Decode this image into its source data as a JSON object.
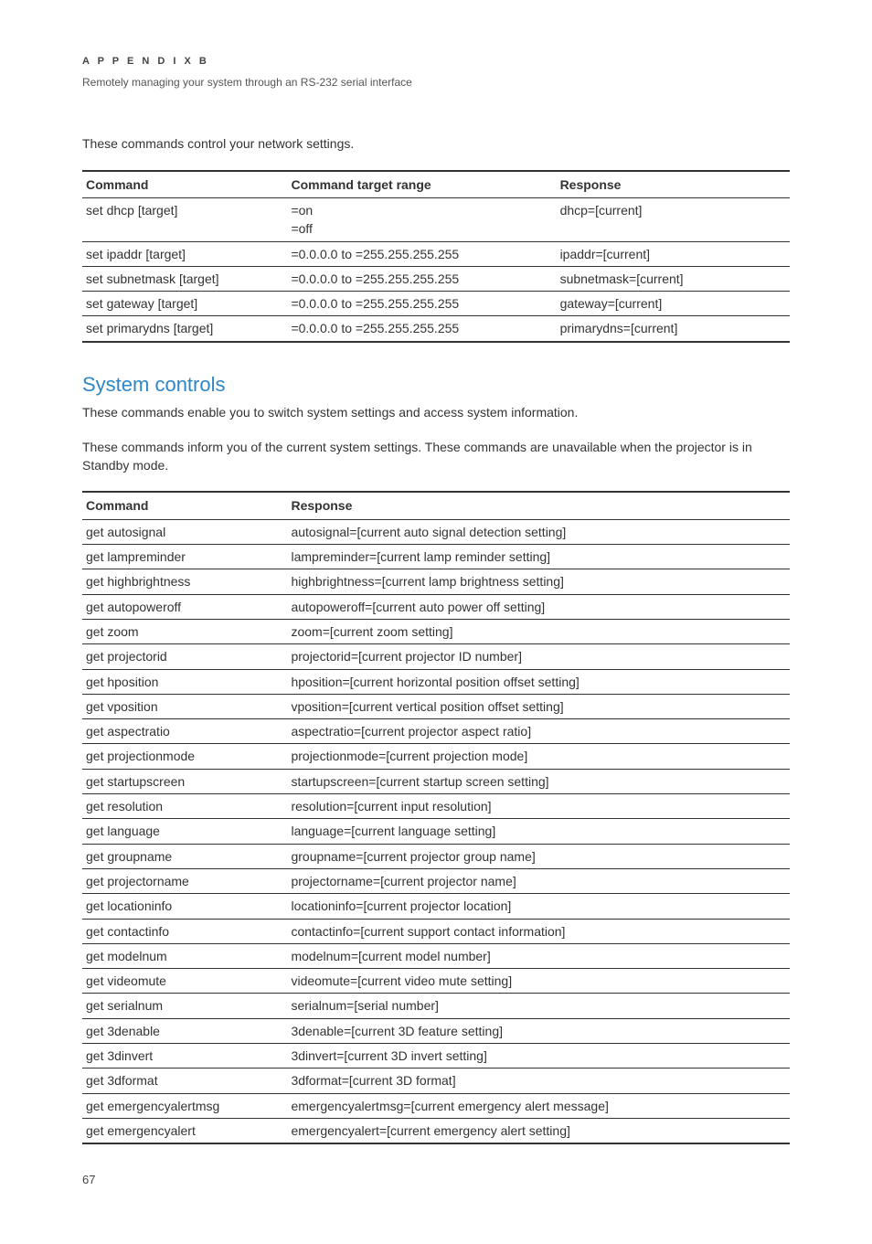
{
  "header": {
    "appendix": "A P P E N D I X   B",
    "subtitle": "Remotely managing your system through an RS-232 serial interface"
  },
  "intro1": "These commands control your network settings.",
  "table1": {
    "columns": [
      "Command",
      "Command target range",
      "Response"
    ],
    "rows": [
      [
        "set dhcp [target]",
        "=on\n=off",
        "dhcp=[current]"
      ],
      [
        "set ipaddr [target]",
        "=0.0.0.0 to =255.255.255.255",
        "ipaddr=[current]"
      ],
      [
        "set subnetmask [target]",
        "=0.0.0.0 to =255.255.255.255",
        "subnetmask=[current]"
      ],
      [
        "set gateway [target]",
        "=0.0.0.0 to =255.255.255.255",
        "gateway=[current]"
      ],
      [
        "set primarydns [target]",
        "=0.0.0.0 to =255.255.255.255",
        "primarydns=[current]"
      ]
    ]
  },
  "section_heading": "System controls",
  "para1": "These commands enable you to switch system settings and access system information.",
  "para2": "These commands inform you of the current system settings. These commands are unavailable when the projector is in Standby mode.",
  "table2": {
    "columns": [
      "Command",
      "Response"
    ],
    "rows": [
      [
        "get autosignal",
        "autosignal=[current auto signal detection setting]"
      ],
      [
        "get lampreminder",
        "lampreminder=[current lamp reminder setting]"
      ],
      [
        "get highbrightness",
        "highbrightness=[current lamp brightness setting]"
      ],
      [
        "get autopoweroff",
        "autopoweroff=[current auto power off setting]"
      ],
      [
        "get zoom",
        "zoom=[current zoom setting]"
      ],
      [
        "get projectorid",
        "projectorid=[current projector ID number]"
      ],
      [
        "get hposition",
        "hposition=[current horizontal position offset setting]"
      ],
      [
        "get vposition",
        "vposition=[current vertical position offset setting]"
      ],
      [
        "get aspectratio",
        "aspectratio=[current projector aspect ratio]"
      ],
      [
        "get projectionmode",
        "projectionmode=[current projection mode]"
      ],
      [
        "get startupscreen",
        "startupscreen=[current startup screen setting]"
      ],
      [
        "get resolution",
        "resolution=[current input resolution]"
      ],
      [
        "get language",
        "language=[current language setting]"
      ],
      [
        "get groupname",
        "groupname=[current projector group name]"
      ],
      [
        "get projectorname",
        "projectorname=[current projector name]"
      ],
      [
        "get locationinfo",
        "locationinfo=[current projector location]"
      ],
      [
        "get contactinfo",
        "contactinfo=[current support contact information]"
      ],
      [
        "get modelnum",
        "modelnum=[current model number]"
      ],
      [
        "get videomute",
        "videomute=[current video mute setting]"
      ],
      [
        "get serialnum",
        "serialnum=[serial number]"
      ],
      [
        "get 3denable",
        "3denable=[current 3D feature setting]"
      ],
      [
        "get 3dinvert",
        "3dinvert=[current 3D invert setting]"
      ],
      [
        "get 3dformat",
        "3dformat=[current 3D format]"
      ],
      [
        "get emergencyalertmsg",
        "emergencyalertmsg=[current emergency alert message]"
      ],
      [
        "get emergencyalert",
        "emergencyalert=[current emergency alert setting]"
      ]
    ]
  },
  "page_number": "67",
  "colors": {
    "heading": "#2d87c6",
    "text": "#333333",
    "border": "#333333"
  }
}
